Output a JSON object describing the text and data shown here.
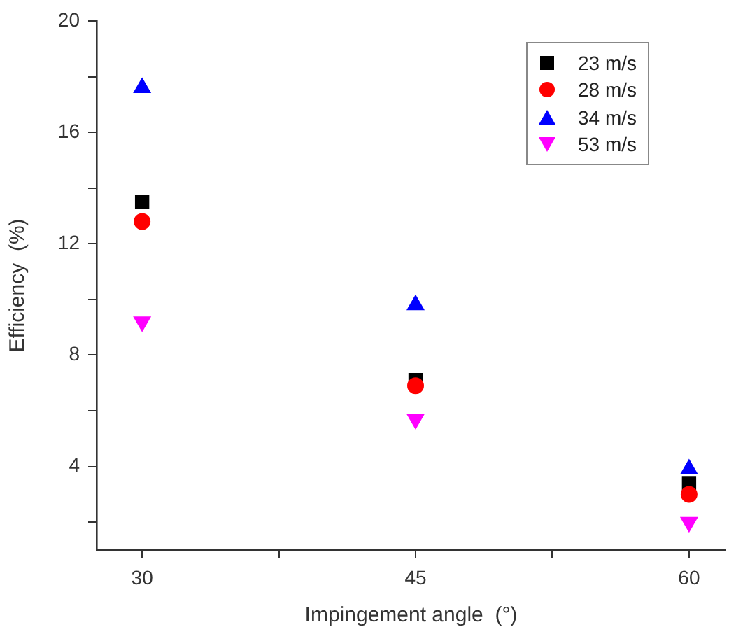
{
  "chart_data": {
    "type": "scatter",
    "xlabel": "Impingement angle  (°)",
    "ylabel": "Efficiency  (%)",
    "x": [
      30,
      45,
      60
    ],
    "series": [
      {
        "name": "23 m/s",
        "color": "#000000",
        "marker": "square",
        "values": [
          13.5,
          7.1,
          3.4
        ]
      },
      {
        "name": "28 m/s",
        "color": "#ff0000",
        "marker": "circle",
        "values": [
          12.8,
          6.9,
          3.0
        ]
      },
      {
        "name": "34 m/s",
        "color": "#0000ff",
        "marker": "triangle",
        "values": [
          17.6,
          9.8,
          3.9
        ]
      },
      {
        "name": "53 m/s",
        "color": "#ff00ff",
        "marker": "triangle-down",
        "values": [
          9.2,
          5.7,
          2.0
        ]
      }
    ],
    "xlim": [
      27.5,
      62
    ],
    "xticks": [
      30,
      {
        "value": 37.5,
        "label": null
      },
      45,
      {
        "value": 52.5,
        "label": null
      },
      60
    ],
    "ylim": [
      1,
      20
    ],
    "yticks": [
      {
        "value": 2,
        "label": null
      },
      4,
      {
        "value": 6,
        "label": null
      },
      8,
      {
        "value": 10,
        "label": null
      },
      12,
      {
        "value": 14,
        "label": null
      },
      16,
      {
        "value": 18,
        "label": null
      },
      20
    ],
    "grid": false,
    "legend": "top right"
  }
}
